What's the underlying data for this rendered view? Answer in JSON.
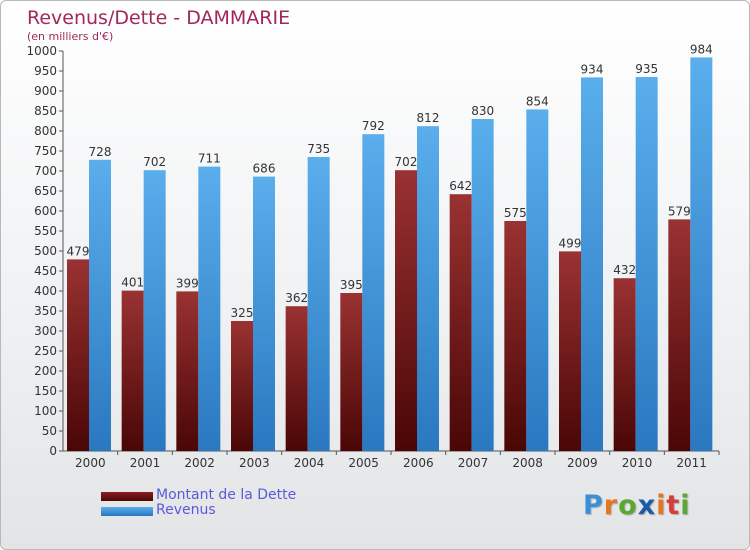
{
  "title": "Revenus/Dette - DAMMARIE",
  "subtitle": "(en milliers d'€)",
  "logo": {
    "text": "Proxiti",
    "letter_colors": [
      "#3b8fd6",
      "#e2771f",
      "#5aa832",
      "#1e5aa8",
      "#e2771f",
      "#d43f3a",
      "#5aa832"
    ]
  },
  "chart_data": {
    "type": "bar",
    "categories": [
      "2000",
      "2001",
      "2002",
      "2003",
      "2004",
      "2005",
      "2006",
      "2007",
      "2008",
      "2009",
      "2010",
      "2011"
    ],
    "series": [
      {
        "name": "Montant de la Dette",
        "color": "#7a1c1c",
        "values": [
          479,
          401,
          399,
          325,
          362,
          395,
          702,
          642,
          575,
          499,
          432,
          579
        ]
      },
      {
        "name": "Revenus",
        "color": "#4a9ee0",
        "values": [
          728,
          702,
          711,
          686,
          735,
          792,
          812,
          830,
          854,
          934,
          935,
          984
        ]
      }
    ],
    "title": "Revenus/Dette - DAMMARIE",
    "xlabel": "",
    "ylabel": "",
    "ylim": [
      0,
      1000
    ],
    "ytick_step": 50,
    "grid": false,
    "legend_position": "bottom-left"
  }
}
